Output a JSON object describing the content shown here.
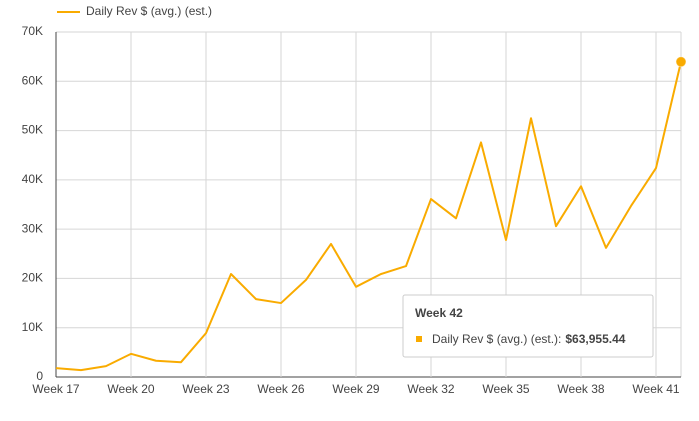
{
  "chart_data": {
    "type": "line",
    "categories": [
      "Week 17",
      null,
      null,
      "Week 20",
      null,
      null,
      "Week 23",
      null,
      null,
      "Week 26",
      null,
      null,
      "Week 29",
      null,
      null,
      "Week 32",
      null,
      null,
      "Week 35",
      null,
      null,
      "Week 38",
      null,
      null,
      "Week 41",
      null
    ],
    "series": [
      {
        "name": "Daily Rev $ (avg.) (est.)",
        "color": "#f9ab00",
        "values": [
          1800,
          1400,
          2200,
          4700,
          3300,
          3000,
          8900,
          20900,
          15800,
          15000,
          19700,
          27000,
          18300,
          20900,
          22500,
          36100,
          32200,
          47600,
          27800,
          52500,
          30600,
          38700,
          26200,
          34700,
          42400,
          63955.44
        ]
      }
    ],
    "ylim": [
      0,
      70000
    ],
    "yticks": [
      0,
      {
        "value": 10000,
        "label": "10K"
      },
      {
        "value": 20000,
        "label": "20K"
      },
      {
        "value": 30000,
        "label": "30K"
      },
      {
        "value": 40000,
        "label": "40K"
      },
      {
        "value": 50000,
        "label": "50K"
      },
      {
        "value": 60000,
        "label": "60K"
      },
      {
        "value": 70000,
        "label": "70K"
      }
    ],
    "grid": true,
    "legend": "top-left",
    "tooltip": {
      "title": "Week 42",
      "label": "Daily Rev $ (avg.) (est.):",
      "value_label": "$63,955.44"
    }
  }
}
